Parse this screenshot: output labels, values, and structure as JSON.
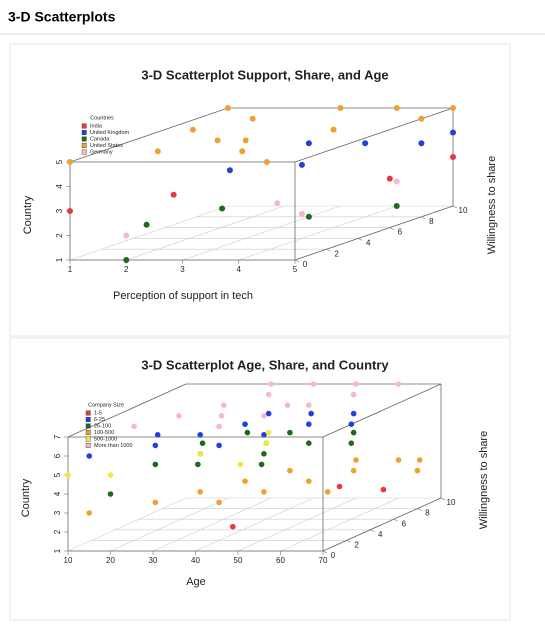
{
  "header": {
    "title": "3-D Scatterplots"
  },
  "chart_data": [
    {
      "type": "scatter3d",
      "title": "3-D Scatterplot Support, Share, and Age",
      "xlabel": "Perception of support in tech",
      "ylabel": "Willingness to share",
      "zlabel": "Country",
      "legend_title": "Countries",
      "legend": "top-left",
      "xlim": [
        1,
        5
      ],
      "ylim": [
        0,
        10
      ],
      "zlim": [
        1,
        5
      ],
      "xticks": [
        1,
        2,
        3,
        4,
        5
      ],
      "yticks": [
        0,
        2,
        4,
        6,
        8,
        10
      ],
      "zticks": [
        1,
        2,
        3,
        4,
        5
      ],
      "series": [
        {
          "name": "India",
          "color": "#e8383d",
          "x": [
            1,
            2,
            5,
            5
          ],
          "y": [
            0,
            3,
            6,
            10
          ],
          "z": [
            3,
            3,
            3,
            3
          ]
        },
        {
          "name": "United Kingdom",
          "color": "#2040e0",
          "x": [
            3,
            4,
            4,
            5,
            5,
            3
          ],
          "y": [
            3,
            8,
            4,
            10,
            8,
            8
          ],
          "z": [
            4,
            4,
            4,
            4,
            4,
            4
          ]
        },
        {
          "name": "Canada",
          "color": "#1d6a1d",
          "x": [
            2,
            2.3,
            3,
            4,
            1.8
          ],
          "y": [
            0,
            5,
            8,
            10,
            2
          ],
          "z": [
            1,
            2,
            1,
            1,
            2
          ]
        },
        {
          "name": "United States",
          "color": "#f0a030",
          "x": [
            1,
            1,
            2,
            2,
            3,
            3,
            4,
            4,
            5,
            5,
            1.5,
            2.5,
            3.5,
            4.5
          ],
          "y": [
            0,
            10,
            2,
            8,
            4,
            10,
            6,
            10,
            8,
            10,
            6,
            4,
            2,
            0
          ],
          "z": [
            5,
            5,
            5,
            5,
            5,
            5,
            5,
            5,
            5,
            5,
            5,
            5,
            5,
            5
          ]
        },
        {
          "name": "Germany",
          "color": "#f7b8c8",
          "x": [
            2,
            3,
            4,
            4
          ],
          "y": [
            0,
            6,
            4,
            10
          ],
          "z": [
            2,
            2,
            2,
            2
          ]
        }
      ]
    },
    {
      "type": "scatter3d",
      "title": "3-D Scatterplot Age, Share, and Country",
      "xlabel": "Age",
      "ylabel": "Willingness to share",
      "zlabel": "Country",
      "legend_title": "Company Size",
      "legend": "top-left",
      "xlim": [
        10,
        70
      ],
      "ylim": [
        0,
        10
      ],
      "zlim": [
        1,
        7
      ],
      "xticks": [
        10,
        20,
        30,
        40,
        50,
        60,
        70
      ],
      "yticks": [
        0,
        2,
        4,
        6,
        8,
        10
      ],
      "zticks": [
        1,
        2,
        3,
        4,
        5,
        6,
        7
      ],
      "series": [
        {
          "name": "1-5",
          "color": "#e8383d",
          "x": [
            46,
            60,
            62
          ],
          "y": [
            1,
            5,
            8
          ],
          "z": [
            2,
            3,
            2
          ]
        },
        {
          "name": "6-25",
          "color": "#2040e0",
          "x": [
            15,
            25,
            30,
            35,
            40,
            45,
            50,
            55,
            60,
            35,
            45,
            20
          ],
          "y": [
            0,
            2,
            4,
            6,
            2,
            4,
            6,
            8,
            6,
            8,
            8,
            4
          ],
          "z": [
            6,
            6,
            6,
            6,
            6,
            6,
            6,
            6,
            6,
            6,
            6,
            6
          ]
        },
        {
          "name": "26-100",
          "color": "#1d6a1d",
          "x": [
            20,
            25,
            30,
            35,
            40,
            45,
            50,
            55,
            60,
            30,
            40,
            50,
            25
          ],
          "y": [
            0,
            2,
            4,
            2,
            6,
            4,
            2,
            8,
            6,
            8,
            8,
            6,
            6
          ],
          "z": [
            4,
            5,
            5,
            5,
            5,
            5,
            5,
            5,
            5,
            5,
            5,
            5,
            5
          ]
        },
        {
          "name": "100-500",
          "color": "#f0a030",
          "x": [
            15,
            25,
            30,
            35,
            40,
            45,
            50,
            55,
            60,
            65,
            40,
            50,
            60,
            70
          ],
          "y": [
            0,
            2,
            4,
            6,
            2,
            4,
            6,
            8,
            4,
            10,
            8,
            10,
            10,
            8
          ],
          "z": [
            3,
            3,
            3,
            3,
            3,
            3,
            3,
            3,
            3,
            3,
            3,
            3,
            3,
            3
          ]
        },
        {
          "name": "500-1000",
          "color": "#f5e83a",
          "x": [
            10,
            20,
            30,
            40,
            45,
            35
          ],
          "y": [
            0,
            0,
            4,
            6,
            2,
            8
          ],
          "z": [
            5,
            5,
            5,
            5,
            5,
            5
          ]
        },
        {
          "name": "More than 1000",
          "color": "#f7b8c8",
          "x": [
            20,
            25,
            30,
            35,
            40,
            45,
            50,
            55,
            30,
            40,
            50,
            60,
            45,
            35
          ],
          "y": [
            2,
            4,
            6,
            8,
            2,
            4,
            6,
            8,
            10,
            10,
            10,
            10,
            6,
            4
          ],
          "z": [
            7,
            7,
            7,
            7,
            7,
            7,
            7,
            7,
            7,
            7,
            7,
            7,
            7,
            7
          ]
        }
      ]
    }
  ]
}
